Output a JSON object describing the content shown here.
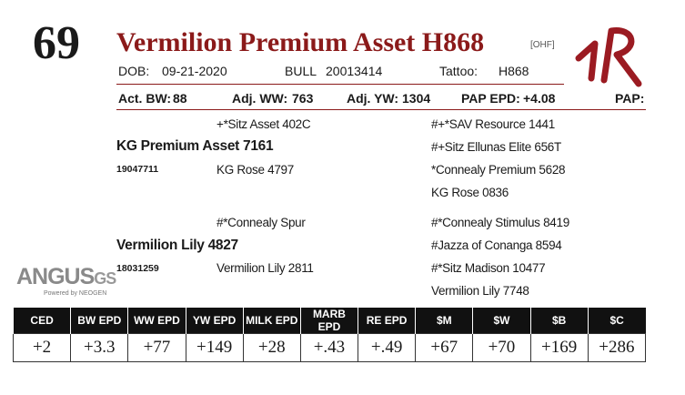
{
  "lot": "69",
  "name": "Vermilion Premium Asset H868",
  "tag": "[OHF]",
  "info": [
    {
      "label": "DOB:",
      "value": "09-21-2020"
    },
    {
      "label": "BULL",
      "value": "20013414"
    },
    {
      "label": "Tattoo:",
      "value": "H868"
    }
  ],
  "performance": [
    {
      "label": "Act. BW:",
      "value": "88"
    },
    {
      "label": "Adj. WW:",
      "value": "763"
    },
    {
      "label": "Adj. YW:",
      "value": "1304"
    },
    {
      "label": "PAP EPD:",
      "value": "+4.08"
    },
    {
      "label": "PAP:",
      "value": ""
    }
  ],
  "pedigree": {
    "sire": {
      "name": "KG Premium Asset 7161",
      "reg": "19047711",
      "sire": "+*Sitz Asset 402C",
      "dam": "KG Rose 4797",
      "grandparents": [
        "#+*SAV Resource 1441",
        "#+Sitz Ellunas Elite 656T",
        "*Connealy Premium 5628",
        "KG Rose 0836"
      ]
    },
    "dam": {
      "name": "Vermilion Lily 4827",
      "reg": "18031259",
      "sire": "#*Connealy Spur",
      "dam": "Vermilion Lily 2811",
      "grandparents": [
        "#*Connealy Stimulus 8419",
        "#Jazza of Conanga 8594",
        "#*Sitz Madison 10477",
        "Vermilion Lily 7748"
      ]
    }
  },
  "logo": {
    "brand": "ANGUS",
    "suffix": "GS",
    "tagline": "Powered by NEOGEN"
  },
  "epd": {
    "headers": [
      "CED",
      "BW EPD",
      "WW EPD",
      "YW EPD",
      "MILK EPD",
      "MARB EPD",
      "RE EPD",
      "$M",
      "$W",
      "$B",
      "$C"
    ],
    "values": [
      "+2",
      "+3.3",
      "+77",
      "+149",
      "+28",
      "+.43",
      "+.49",
      "+67",
      "+70",
      "+169",
      "+286"
    ]
  }
}
